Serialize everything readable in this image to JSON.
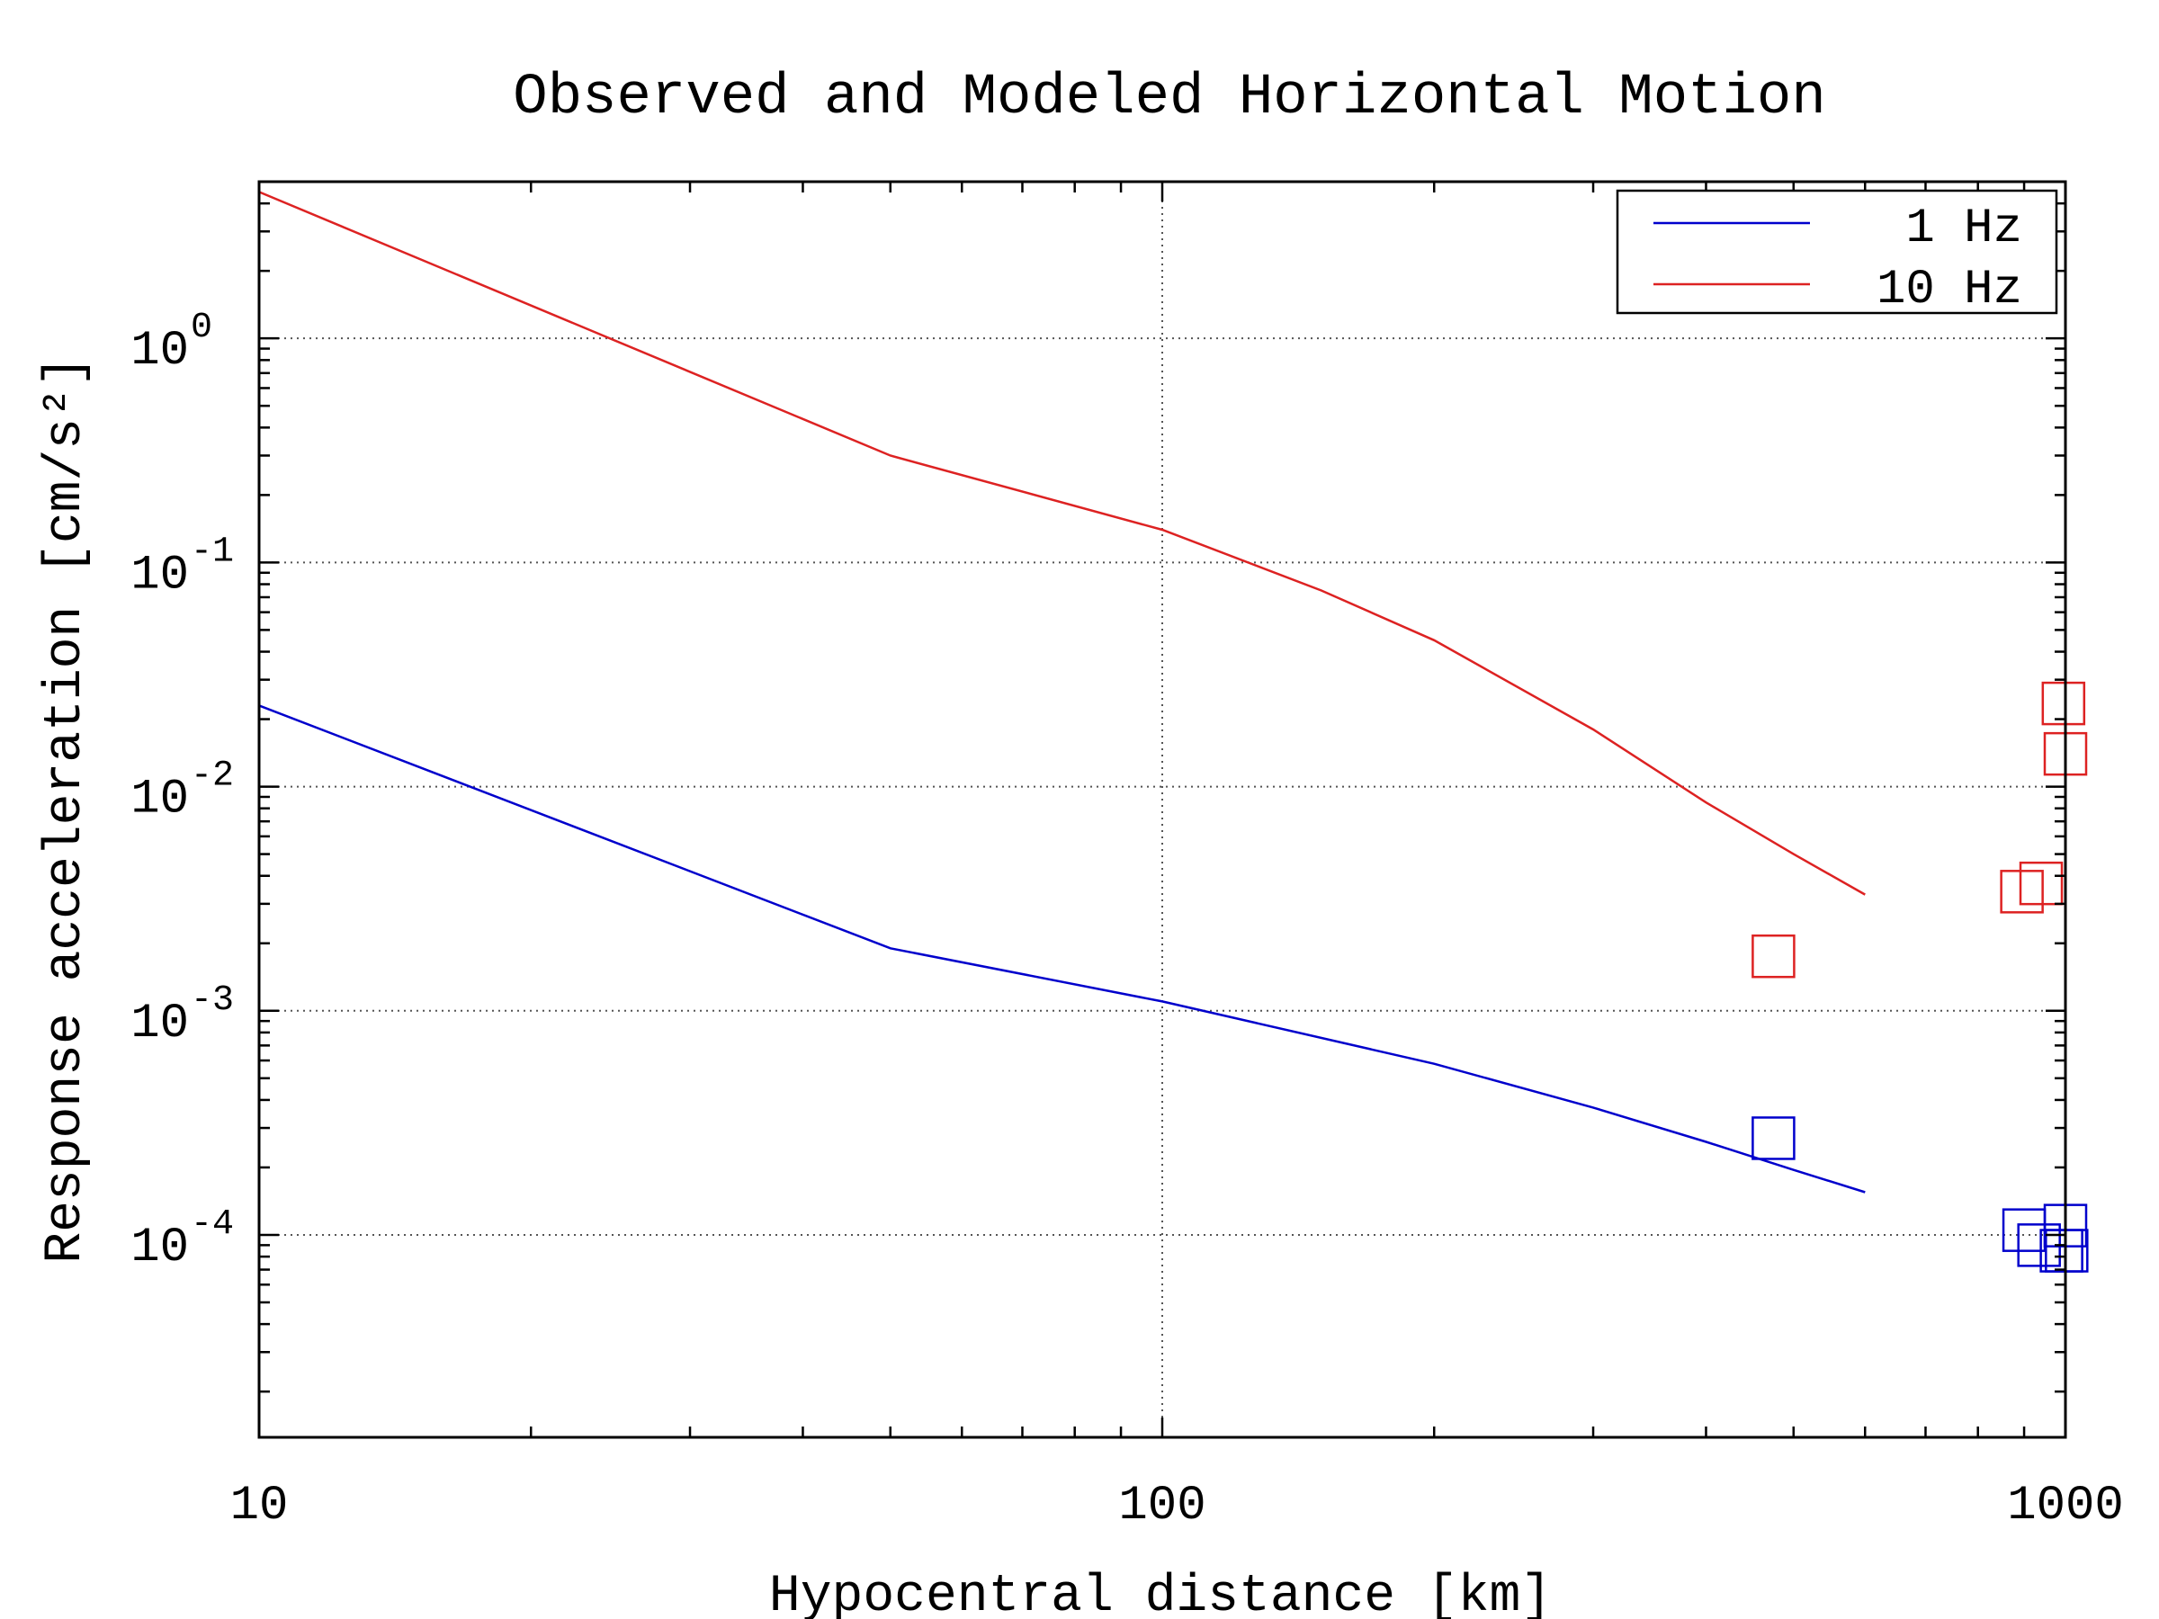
{
  "chart_data": {
    "type": "line",
    "title": "Observed and Modeled Horizontal Motion",
    "xlabel": "Hypocentral distance [km]",
    "ylabel": "Response acceleration [cm/s²]",
    "x_scale": "log",
    "y_scale": "log",
    "xlim": [
      10,
      1000
    ],
    "ylim": [
      1.25e-05,
      5
    ],
    "x_ticks": [
      {
        "value": 10,
        "label": "10"
      },
      {
        "value": 100,
        "label": "100"
      },
      {
        "value": 1000,
        "label": "1000"
      }
    ],
    "y_ticks": [
      {
        "value": 1,
        "base": "10",
        "exp": "0"
      },
      {
        "value": 0.1,
        "base": "10",
        "exp": "-1"
      },
      {
        "value": 0.01,
        "base": "10",
        "exp": "-2"
      },
      {
        "value": 0.001,
        "base": "10",
        "exp": "-3"
      },
      {
        "value": 0.0001,
        "base": "10",
        "exp": "-4"
      }
    ],
    "grid": true,
    "legend_position": "top-right",
    "series": [
      {
        "name": "1 Hz",
        "color": "#0000cc",
        "model": {
          "x": [
            10,
            50,
            100,
            200,
            300,
            400,
            500,
            600
          ],
          "y": [
            0.023,
            0.0019,
            0.0011,
            0.00058,
            0.00037,
            0.00026,
            0.000195,
            0.000155
          ]
        },
        "observed": {
          "x": [
            475,
            900,
            935,
            990,
            1000,
            1003
          ],
          "y": [
            0.00027,
            0.000105,
            9e-05,
            8.5e-05,
            0.00011,
            8.5e-05
          ]
        }
      },
      {
        "name": "10 Hz",
        "color": "#dd2222",
        "model": {
          "x": [
            10,
            50,
            100,
            150,
            200,
            300,
            400,
            500,
            600
          ],
          "y": [
            4.5,
            0.3,
            0.14,
            0.075,
            0.045,
            0.018,
            0.0085,
            0.005,
            0.0033
          ]
        },
        "observed": {
          "x": [
            475,
            895,
            940,
            995,
            1000
          ],
          "y": [
            0.00175,
            0.0034,
            0.0037,
            0.0235,
            0.014
          ]
        }
      }
    ]
  }
}
